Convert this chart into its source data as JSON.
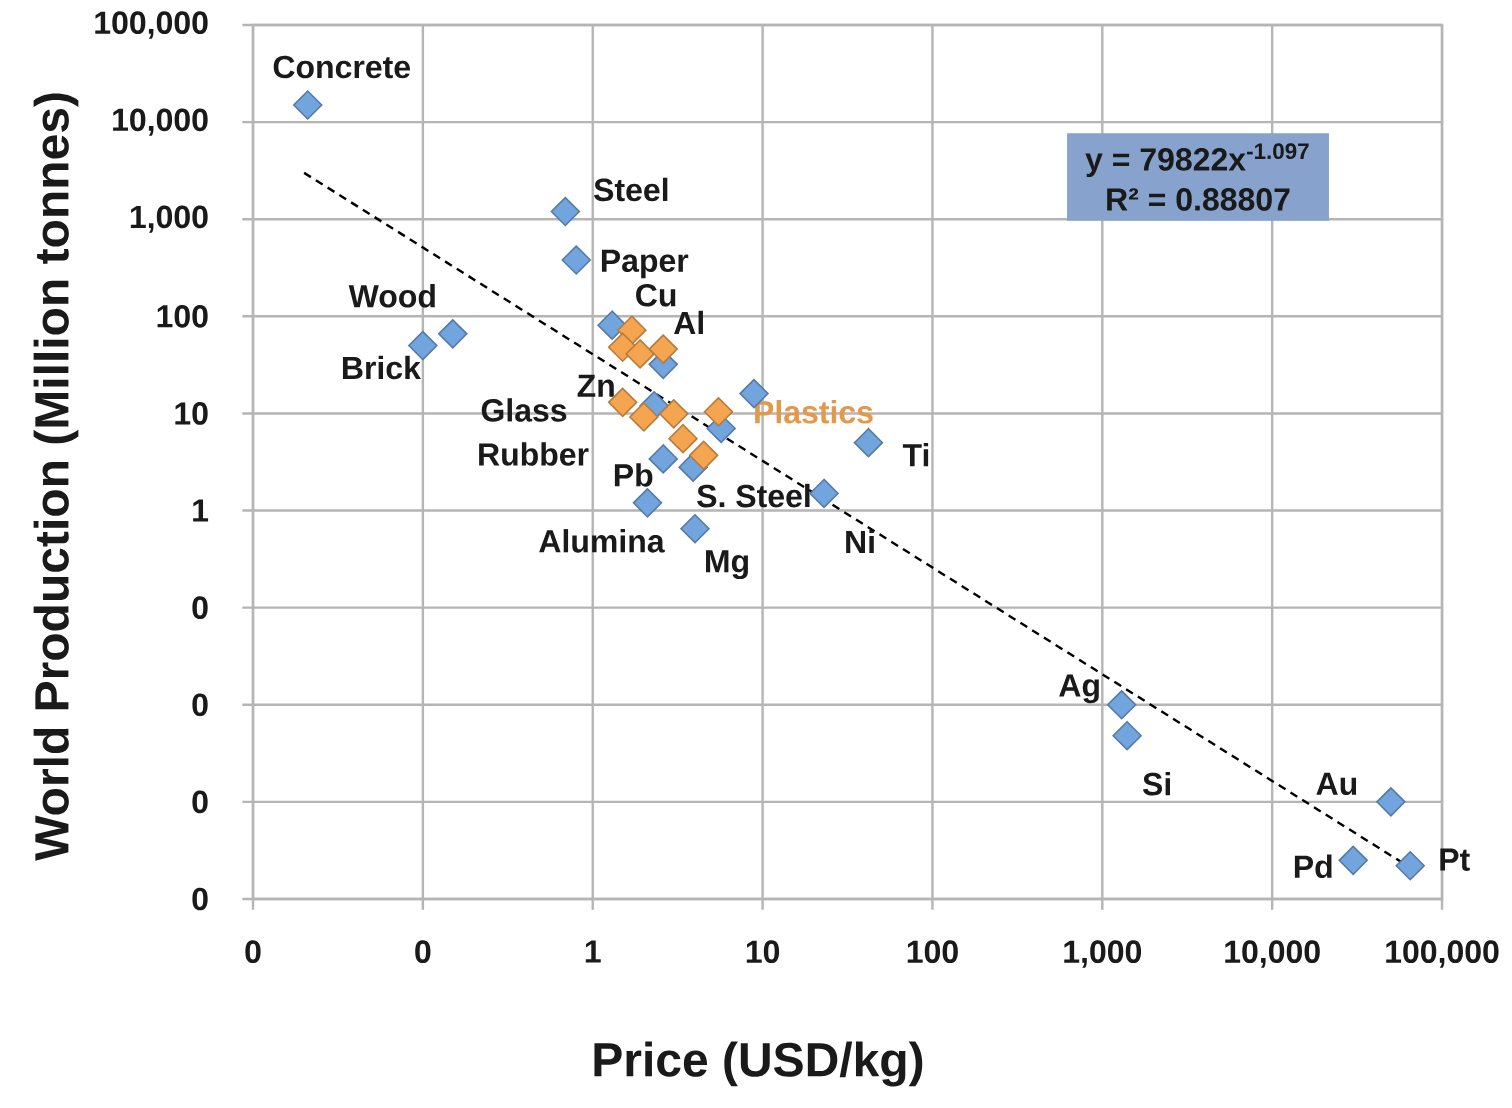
{
  "chart_data": {
    "type": "scatter",
    "xlabel": "Price (USD/kg)",
    "ylabel": "World Production (Million tonnes)",
    "log": "xy",
    "grid": true,
    "marker": "diamond",
    "xlim": [
      0.01,
      100000
    ],
    "ylim": [
      0.0001,
      100000
    ],
    "xticks": [
      {
        "value": 0.01,
        "label": "0"
      },
      {
        "value": 0.1,
        "label": "0"
      },
      1,
      10,
      100,
      {
        "value": 1000,
        "label": "1,000"
      },
      {
        "value": 10000,
        "label": "10,000"
      },
      {
        "value": 100000,
        "label": "100,000"
      }
    ],
    "yticks": [
      {
        "value": 0.0001,
        "label": "0"
      },
      {
        "value": 0.001,
        "label": "0"
      },
      {
        "value": 0.01,
        "label": "0"
      },
      {
        "value": 0.1,
        "label": "0"
      },
      1,
      10,
      100,
      {
        "value": 1000,
        "label": "1,000"
      },
      {
        "value": 10000,
        "label": "10,000"
      },
      {
        "value": 100000,
        "label": "100,000"
      }
    ],
    "series": [
      {
        "color": "#72a4dd",
        "x": [
          0.021,
          0.69,
          0.8,
          0.15,
          0.1,
          1.3,
          2.6,
          2.3,
          5.7,
          3.9,
          2.6,
          2.1,
          4,
          8.9,
          23,
          42,
          1300,
          1400,
          50000,
          30000,
          65000
        ],
        "values": [
          15000,
          1200,
          380,
          66,
          50,
          81,
          32,
          12,
          7,
          2.8,
          3.4,
          1.2,
          0.65,
          16,
          1.5,
          5,
          0.01,
          0.0048,
          0.001,
          0.00025,
          0.00022
        ]
      },
      {
        "name": "Plastics",
        "color": "#f5a550",
        "x": [
          1.7,
          1.5,
          1.9,
          2.6,
          1.5,
          2,
          3,
          3.4,
          4.5,
          5.5
        ],
        "values": [
          72,
          48,
          41,
          46,
          13,
          9.2,
          9.9,
          5.5,
          3.7,
          10.4
        ]
      },
      {
        "type": "line",
        "marker": "none",
        "line_style": "dashed",
        "color": "#000000",
        "x": [
          0.02,
          65000
        ],
        "values": [
          3000,
          0.00021
        ]
      }
    ],
    "annotations": [
      {
        "text": "Concrete",
        "x": 0.021,
        "y": 15000
      },
      {
        "text": "Steel",
        "x": 0.69,
        "y": 1200
      },
      {
        "text": "Paper",
        "x": 0.8,
        "y": 380
      },
      {
        "text": "Wood",
        "x": 0.15,
        "y": 66
      },
      {
        "text": "Brick",
        "x": 0.1,
        "y": 50
      },
      {
        "text": "Cu",
        "x": 1.3,
        "y": 81
      },
      {
        "text": "Al",
        "x": 2.6,
        "y": 32
      },
      {
        "text": "Zn",
        "x": 2.3,
        "y": 12
      },
      "Glass",
      "Rubber",
      {
        "text": "Pb",
        "x": 2.6,
        "y": 3.4
      },
      {
        "text": "Alumina",
        "x": 2.1,
        "y": 1.2
      },
      {
        "text": "Mg",
        "x": 4,
        "y": 0.65
      },
      {
        "text": "S. Steel",
        "x": 8.9,
        "y": 16
      },
      {
        "text": "Ni",
        "x": 23,
        "y": 1.5
      },
      {
        "text": "Ti",
        "x": 42,
        "y": 5
      },
      {
        "text": "Ag",
        "x": 1300,
        "y": 0.01
      },
      {
        "text": "Si",
        "x": 1400,
        "y": 0.0048
      },
      {
        "text": "Au",
        "x": 50000,
        "y": 0.001
      },
      {
        "text": "Pd",
        "x": 30000,
        "y": 0.00025
      },
      {
        "text": "Pt",
        "x": 65000,
        "y": 0.00022
      },
      "y = 79822x$^{-1.097}$",
      "R² = 0.88807"
    ]
  }
}
